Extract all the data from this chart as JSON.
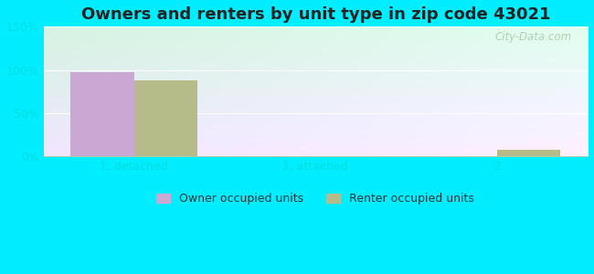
{
  "title": "Owners and renters by unit type in zip code 43021",
  "categories": [
    "1, detached",
    "1, attached",
    "2"
  ],
  "owner_values": [
    97,
    0.5,
    0
  ],
  "renter_values": [
    88,
    0,
    8
  ],
  "owner_color": "#c9a8d4",
  "renter_color": "#b5bc8a",
  "bar_width": 0.35,
  "ylim": [
    0,
    150
  ],
  "yticks": [
    0,
    50,
    100,
    150
  ],
  "ytick_labels": [
    "0%",
    "50%",
    "100%",
    "150%"
  ],
  "title_fontsize": 13,
  "legend_labels": [
    "Owner occupied units",
    "Renter occupied units"
  ],
  "outer_color": "#00eeff",
  "watermark": "City-Data.com",
  "tick_color": "#00dddd",
  "grid_color": "#c8dfc8"
}
